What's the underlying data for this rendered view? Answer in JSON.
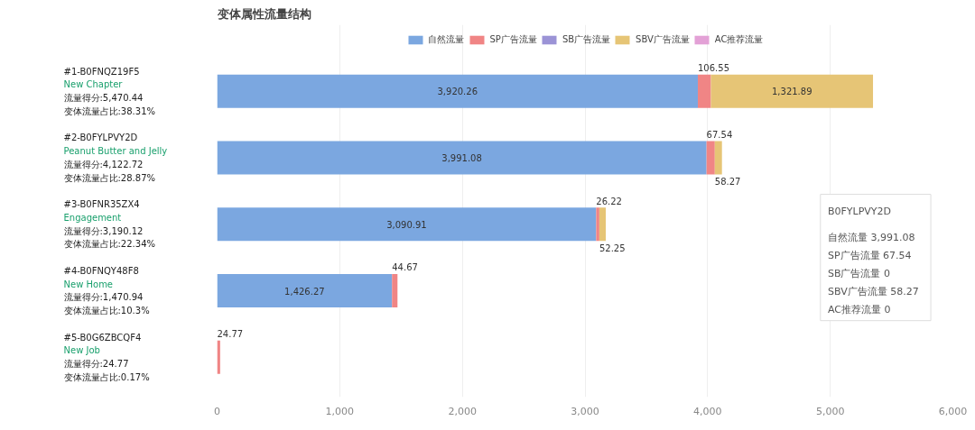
{
  "chart_data": {
    "type": "bar",
    "orientation": "horizontal",
    "stacked": true,
    "title": "变体属性流量结构",
    "categories": [
      "#1-B0FNQZ19F5\nNew Chapter\n流量得分:5,470.44\n变体流量占比:38.31%",
      "#2-B0FYLPVY2D\nPeanut Butter and Jelly\n流量得分:4,122.72\n变体流量占比:28.87%",
      "#3-B0FNR35ZX4\nEngagement\n流量得分:3,190.12\n变体流量占比:22.34%",
      "#4-B0FNQY48F8\nNew Home\n流量得分:1,470.94\n变体流量占比:10.3%",
      "#5-B0G6ZBCQF4\nNew Job\n流量得分:24.77\n变体流量占比:0.17%"
    ],
    "series": [
      {
        "name": "自然流量",
        "color": "#7ba7e0",
        "values": [
          3920.26,
          3991.08,
          3090.91,
          1426.27,
          null
        ],
        "value_labels": [
          "3,920.26",
          "3,991.08",
          "3,090.91",
          "1,426.27",
          null
        ]
      },
      {
        "name": "SP广告流量",
        "color": "#f08585",
        "values": [
          106.55,
          67.54,
          26.22,
          44.67,
          24.77
        ],
        "value_labels": [
          "106.55",
          "67.54",
          "26.22",
          "44.67",
          "24.77"
        ]
      },
      {
        "name": "SB广告流量",
        "color": "#9b93d6",
        "values": [
          0,
          0,
          0,
          0,
          0
        ]
      },
      {
        "name": "SBV广告流量",
        "color": "#e6c576",
        "values": [
          1321.89,
          58.27,
          52.25,
          null,
          null
        ],
        "value_labels": [
          "1,321.89",
          "58.27",
          "52.25",
          null,
          null
        ]
      },
      {
        "name": "AC推荐流量",
        "color": "#e3a1d6",
        "values": [
          0,
          0,
          0,
          0,
          0
        ]
      }
    ],
    "xlim": [
      0,
      6000
    ],
    "xticks": [
      0,
      {
        "value": 1000,
        "label": "1,000"
      },
      {
        "value": 2000,
        "label": "2,000"
      },
      {
        "value": 3000,
        "label": "3,000"
      },
      {
        "value": 4000,
        "label": "4,000"
      },
      {
        "value": 5000,
        "label": "5,000"
      },
      {
        "value": 6000,
        "label": "6,000"
      }
    ],
    "grid": "x",
    "legend": "top",
    "annotations": [
      "B0FYLPVY2D",
      "自然流量 3,991.08",
      "SP广告流量 67.54",
      "SB广告流量 0",
      "SBV广告流量 58.27",
      "AC推荐流量 0"
    ]
  }
}
